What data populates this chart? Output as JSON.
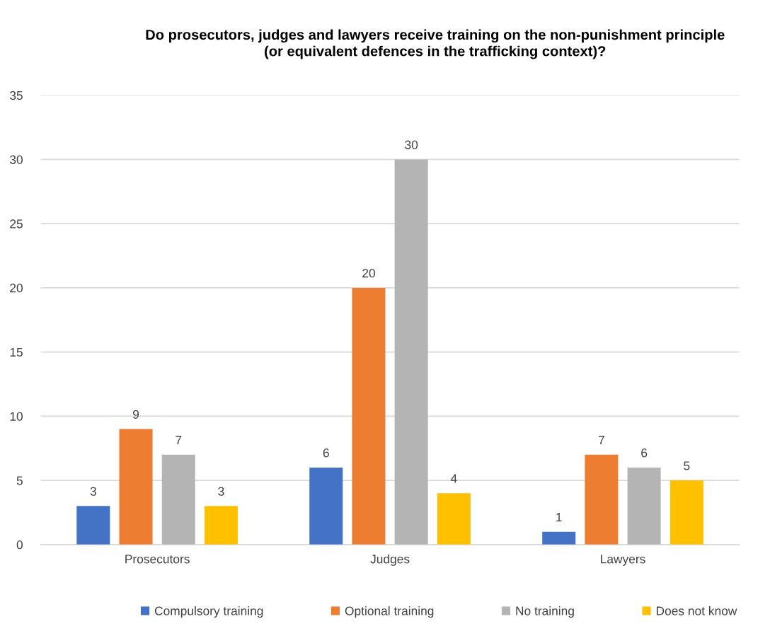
{
  "chart_data": {
    "type": "bar",
    "title": "Do prosecutors, judges and lawyers receive training on the non-punishment principle\n(or equivalent defences in the trafficking context)?",
    "categories": [
      "Prosecutors",
      "Judges",
      "Lawyers"
    ],
    "series": [
      {
        "name": "Compulsory training",
        "color": "#4472c4",
        "values": [
          3,
          6,
          1
        ]
      },
      {
        "name": "Optional training",
        "color": "#ed7d31",
        "values": [
          9,
          20,
          7
        ]
      },
      {
        "name": "No training",
        "color": "#b4b4b4",
        "values": [
          7,
          30,
          6
        ]
      },
      {
        "name": "Does not know",
        "color": "#ffc000",
        "values": [
          3,
          4,
          5
        ]
      }
    ],
    "ylim": [
      0,
      35
    ],
    "yticks": [
      0,
      5,
      10,
      15,
      20,
      25,
      30,
      35
    ],
    "grid": "y",
    "legend": "bottom",
    "data_labels": true
  }
}
